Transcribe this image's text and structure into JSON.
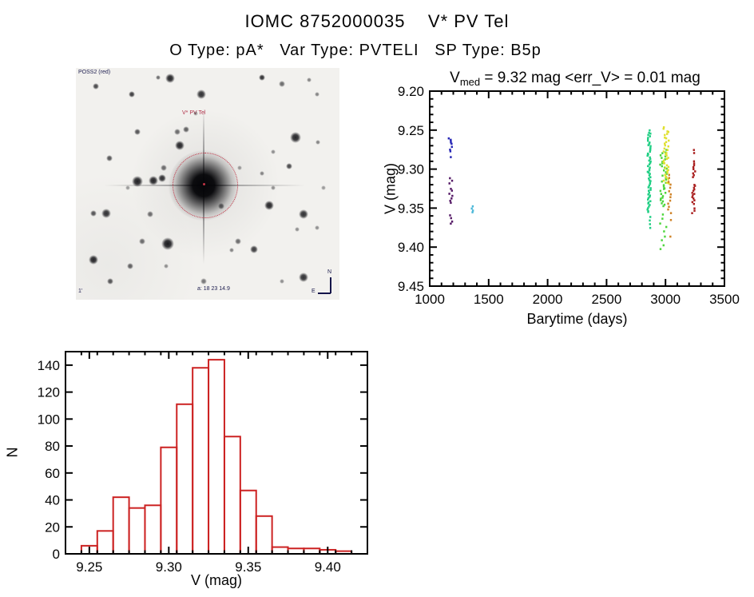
{
  "header": {
    "title": "IOMC 8752000035    V* PV Tel",
    "subtitle": "O Type: pA*   Var Type: PVTELI   SP Type: B5p"
  },
  "finding_chart": {
    "label_top_left": "POSS2 (red)",
    "label_target": "V* PV Tel",
    "label_coords": "a: 18 23 14.9",
    "label_scale": "1'",
    "compass_north": "N",
    "compass_east": "E",
    "circle_color": "#c23345",
    "stars": [
      [
        25,
        23,
        3,
        0.75
      ],
      [
        70,
        33,
        3,
        0.8
      ],
      [
        103,
        12,
        2,
        0.6
      ],
      [
        118,
        13,
        4,
        0.9
      ],
      [
        157,
        33,
        4,
        0.85
      ],
      [
        233,
        12,
        3,
        0.85
      ],
      [
        258,
        20,
        2.5,
        0.6
      ],
      [
        292,
        15,
        2,
        0.5
      ],
      [
        302,
        33,
        2,
        0.5
      ],
      [
        77,
        80,
        3,
        0.7
      ],
      [
        127,
        80,
        2.5,
        0.6
      ],
      [
        138,
        77,
        2.5,
        0.65
      ],
      [
        130,
        97,
        4,
        0.9
      ],
      [
        275,
        87,
        4.5,
        0.9
      ],
      [
        303,
        93,
        2,
        0.5
      ],
      [
        42,
        113,
        3,
        0.7
      ],
      [
        110,
        125,
        2.5,
        0.6
      ],
      [
        247,
        105,
        2,
        0.45
      ],
      [
        233,
        132,
        2,
        0.5
      ],
      [
        267,
        123,
        3,
        0.75
      ],
      [
        77,
        142,
        4.5,
        0.92
      ],
      [
        97,
        141,
        4,
        0.9
      ],
      [
        108,
        138,
        3.5,
        0.85
      ],
      [
        182,
        173,
        2.5,
        0.6
      ],
      [
        242,
        172,
        4,
        0.9
      ],
      [
        285,
        183,
        4,
        0.85
      ],
      [
        22,
        182,
        3,
        0.7
      ],
      [
        38,
        182,
        4,
        0.85
      ],
      [
        93,
        183,
        2.5,
        0.6
      ],
      [
        83,
        217,
        2.5,
        0.6
      ],
      [
        115,
        220,
        5.5,
        0.95
      ],
      [
        203,
        217,
        2.5,
        0.6
      ],
      [
        223,
        227,
        3.5,
        0.8
      ],
      [
        195,
        228,
        2,
        0.5
      ],
      [
        22,
        240,
        4,
        0.9
      ],
      [
        68,
        248,
        2.5,
        0.65
      ],
      [
        43,
        267,
        3,
        0.7
      ],
      [
        113,
        248,
        2,
        0.45
      ],
      [
        160,
        267,
        2.5,
        0.55
      ],
      [
        258,
        267,
        2,
        0.45
      ],
      [
        285,
        262,
        4,
        0.85
      ],
      [
        302,
        200,
        2,
        0.45
      ],
      [
        277,
        202,
        2,
        0.45
      ],
      [
        205,
        125,
        2,
        0.4
      ],
      [
        150,
        57,
        2,
        0.4
      ],
      [
        247,
        150,
        2,
        0.45
      ],
      [
        65,
        150,
        2,
        0.4
      ],
      [
        310,
        150,
        2,
        0.4
      ]
    ]
  },
  "chart_data": [
    {
      "id": "light_curve",
      "type": "scatter",
      "title_parts": {
        "prefix": "V",
        "sub": "med",
        "rest": " = 9.32 mag <err_V> = 0.01 mag"
      },
      "xlabel": "Barytime (days)",
      "ylabel": "V (mag)",
      "xlim": [
        1000,
        3500
      ],
      "ylim": [
        9.2,
        9.45
      ],
      "ydir": "down",
      "xticks": [
        "1000",
        "1500",
        "2000",
        "2500",
        "3000",
        "3500"
      ],
      "yticks": [
        "9.20",
        "9.25",
        "9.30",
        "9.35",
        "9.40",
        "9.45"
      ],
      "xminor": 100,
      "yminor": 0.01,
      "grid": false,
      "legend": "none",
      "series": [
        {
          "name": "epoch-1-navy",
          "color": "#2525b5",
          "x": 1175,
          "xspread": 4,
          "ranges": [
            [
              9.26,
              9.268,
              0.002
            ],
            [
              9.272,
              9.277,
              0.0025
            ]
          ],
          "points": [
            9.284
          ]
        },
        {
          "name": "epoch-2-purple",
          "color": "#551a66",
          "x": 1179,
          "xspread": 4,
          "ranges": [
            [
              9.311,
              9.321,
              0.0034
            ],
            [
              9.325,
              9.344,
              0.003
            ],
            [
              9.359,
              9.374,
              0.0038
            ]
          ],
          "points": []
        },
        {
          "name": "epoch-3-cyan",
          "color": "#4db8d8",
          "x": 1367,
          "xspread": 5,
          "ranges": [
            [
              9.347,
              9.357,
              0.003
            ]
          ],
          "points": []
        },
        {
          "name": "epoch-4-springgreen",
          "color": "#22cf85",
          "x": 2861,
          "xspread": 4,
          "ranges": [
            [
              9.251,
              9.357,
              0.0018
            ]
          ],
          "points": [
            9.362,
            9.366,
            9.371,
            9.375
          ]
        },
        {
          "name": "epoch-5-green",
          "color": "#4ed63e",
          "x": 2984,
          "xspread": 9,
          "ranges": [
            [
              9.276,
              9.349,
              0.002
            ],
            [
              9.358,
              9.403,
              0.0056
            ]
          ],
          "points": []
        },
        {
          "name": "epoch-6-yellow",
          "color": "#e0e030",
          "x": 3004,
          "xspread": 7,
          "ranges": [
            [
              9.247,
              9.32,
              0.002
            ]
          ],
          "points": []
        },
        {
          "name": "epoch-7-orange",
          "color": "#cf8328",
          "x": 3035,
          "xspread": 4,
          "ranges": [
            [
              9.308,
              9.358,
              0.004
            ]
          ],
          "points": [
            9.365,
            9.387
          ]
        },
        {
          "name": "epoch-8-darkred",
          "color": "#aa2020",
          "x": 3239,
          "xspread": 4,
          "ranges": [
            [
              9.276,
              9.28,
              0.004
            ],
            [
              9.29,
              9.312,
              0.0025
            ],
            [
              9.32,
              9.345,
              0.002
            ],
            [
              9.35,
              9.358,
              0.003
            ]
          ],
          "points": []
        }
      ]
    },
    {
      "id": "v_histogram",
      "type": "bar",
      "xlabel": "V (mag)",
      "ylabel": "N",
      "xlim": [
        9.235,
        9.425
      ],
      "ylim": [
        0,
        150
      ],
      "ydir": "up",
      "xticks": [
        "9.25",
        "9.30",
        "9.35",
        "9.40"
      ],
      "yticks": [
        "0",
        "20",
        "40",
        "60",
        "80",
        "100",
        "120",
        "140"
      ],
      "xminor": 0.01,
      "yminor": null,
      "grid": false,
      "color": "#cc2222",
      "bin_start": 9.245,
      "bin_width": 0.01,
      "counts": [
        6,
        17,
        42,
        34,
        36,
        79,
        111,
        138,
        144,
        87,
        47,
        28,
        5,
        4,
        4,
        3,
        2
      ]
    }
  ],
  "colors": {
    "axis": "#000000",
    "histogram": "#cc2222",
    "background": "#ffffff"
  }
}
